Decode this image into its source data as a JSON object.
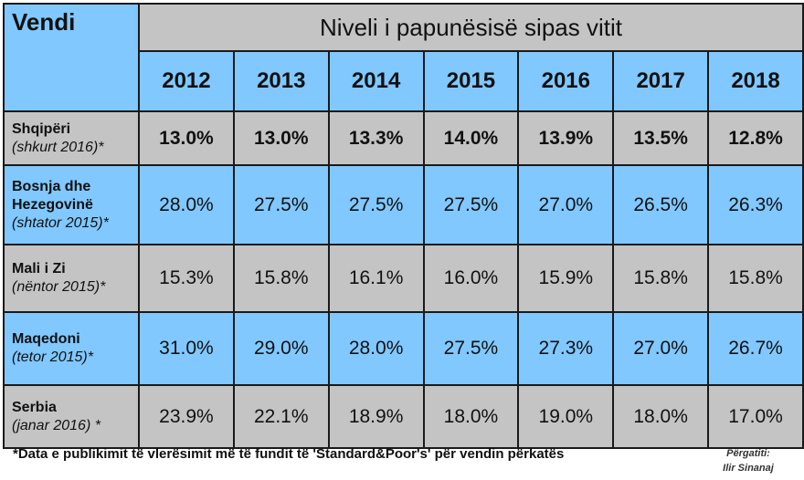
{
  "title": "Niveli i papunësisë sipas vitit",
  "country_header": "Vendi",
  "footnote": "*Data e publikimit të vlerësimit më të fundit të 'Standard&Poor's' për vendin përkatës",
  "credit": {
    "line1": "Përgatiti:",
    "line2": "Ilir Sinanaj"
  },
  "colors": {
    "blue_cells": "#80c8ff",
    "gray_cells": "#c4c4c4",
    "border": "#1a1a1a"
  },
  "chart_data": {
    "type": "table",
    "title": "Niveli i papunësisë sipas vitit",
    "columns": [
      "2012",
      "2013",
      "2014",
      "2015",
      "2016",
      "2017",
      "2018"
    ],
    "rows": [
      {
        "country": "Shqipëri",
        "note": "(shkurt 2016)*",
        "values": [
          "13.0%",
          "13.0%",
          "13.3%",
          "14.0%",
          "13.9%",
          "13.5%",
          "12.8%"
        ],
        "bold": true
      },
      {
        "country": "Bosnja dhe Hezegovinë",
        "note": "(shtator 2015)*",
        "values": [
          "28.0%",
          "27.5%",
          "27.5%",
          "27.5%",
          "27.0%",
          "26.5%",
          "26.3%"
        ],
        "bold": false
      },
      {
        "country": "Mali i Zi",
        "note": "(nëntor 2015)*",
        "values": [
          "15.3%",
          "15.8%",
          "16.1%",
          "16.0%",
          "15.9%",
          "15.8%",
          "15.8%"
        ],
        "bold": false
      },
      {
        "country": "Maqedoni",
        "note": "(tetor 2015)*",
        "values": [
          "31.0%",
          "29.0%",
          "28.0%",
          "27.5%",
          "27.3%",
          "27.0%",
          "26.7%"
        ],
        "bold": false
      },
      {
        "country": "Serbia",
        "note": "(janar 2016) *",
        "values": [
          "23.9%",
          "22.1%",
          "18.9%",
          "18.0%",
          "19.0%",
          "18.0%",
          "17.0%"
        ],
        "bold": false
      }
    ]
  }
}
